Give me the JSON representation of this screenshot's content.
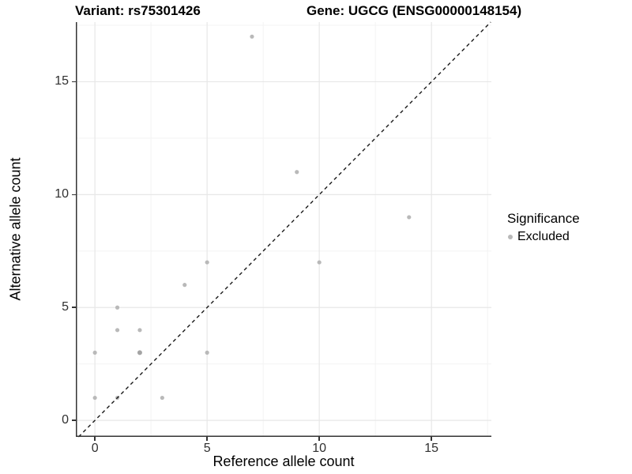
{
  "titles": {
    "variant": "Variant: rs75301426",
    "gene": "Gene: UGCG (ENSG00000148154)"
  },
  "axes": {
    "x": {
      "label": "Reference allele count",
      "major_ticks": [
        0,
        5,
        10,
        15
      ],
      "minor_ticks": [
        2.5,
        7.5,
        12.5,
        17.5
      ],
      "range": [
        -0.85,
        17.67
      ]
    },
    "y": {
      "label": "Alternative allele count",
      "major_ticks": [
        0,
        5,
        10,
        15
      ],
      "minor_ticks": [
        2.5,
        7.5,
        12.5,
        17.5
      ],
      "range": [
        -0.73,
        17.64
      ]
    }
  },
  "legend": {
    "title": "Significance",
    "items": [
      {
        "label": "Excluded",
        "color": "#b9b9b9"
      }
    ]
  },
  "chart_data": {
    "type": "scatter",
    "title": "Variant: rs75301426 | Gene: UGCG (ENSG00000148154)",
    "xlabel": "Reference allele count",
    "ylabel": "Alternative allele count",
    "xlim": [
      -0.85,
      17.67
    ],
    "ylim": [
      -0.73,
      17.64
    ],
    "grid": true,
    "legend_position": "right",
    "identity_line": {
      "slope": 1,
      "intercept": 0,
      "style": "dashed",
      "color": "#1a1a1a"
    },
    "series": [
      {
        "name": "Excluded",
        "color": "#b9b9b9",
        "points": [
          {
            "x": 0,
            "y": 1
          },
          {
            "x": 0,
            "y": 3
          },
          {
            "x": 1,
            "y": 1
          },
          {
            "x": 1,
            "y": 4
          },
          {
            "x": 1,
            "y": 5
          },
          {
            "x": 2,
            "y": 3,
            "overlap": true
          },
          {
            "x": 2,
            "y": 4
          },
          {
            "x": 3,
            "y": 1
          },
          {
            "x": 4,
            "y": 6
          },
          {
            "x": 5,
            "y": 3
          },
          {
            "x": 5,
            "y": 7
          },
          {
            "x": 7,
            "y": 17
          },
          {
            "x": 9,
            "y": 11
          },
          {
            "x": 10,
            "y": 7
          },
          {
            "x": 14,
            "y": 9
          }
        ]
      }
    ]
  },
  "colors": {
    "point": "#b9b9b9",
    "point_overlap": "#a4a4a4",
    "grid_major": "#e7e7e7",
    "grid_minor": "#f3f3f3",
    "axis_line": "#333333",
    "dashed_line": "#1a1a1a",
    "tick_text": "#303030"
  }
}
